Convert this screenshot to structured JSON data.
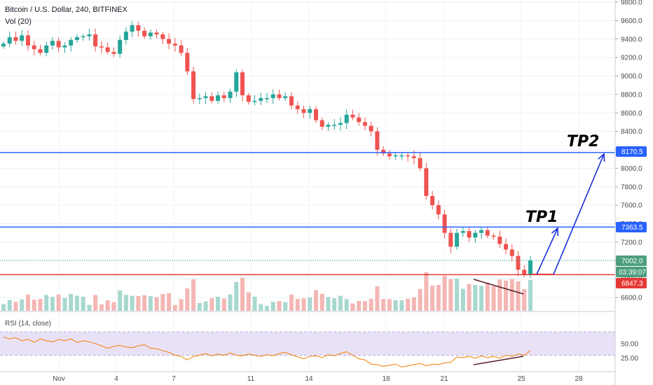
{
  "header": {
    "title": "Bitcoin / U.S. Dollar, 240, BITFINEX",
    "volume_label": "Vol (20)"
  },
  "rsi": {
    "label": "RSI (14, close)",
    "ticks": [
      "50.00",
      "25.00"
    ],
    "band_upper": 70,
    "band_lower": 30
  },
  "annotations": {
    "tp1": "TP1",
    "tp2": "TP2"
  },
  "price_tags": {
    "tp2": "8170.5",
    "tp1": "7363.5",
    "last": "7002.0",
    "countdown": "03:39:07",
    "support": "6847.3"
  },
  "colors": {
    "up": "#26a69a",
    "down": "#ef5350",
    "up_vol": "#a7d8cf",
    "down_vol": "#f4b6b4",
    "target_line": "#2962ff",
    "support_line": "#e53935",
    "arrow": "#1a2fd8",
    "divergence": "#5d1f2b",
    "rsi_line": "#f57c00",
    "rsi_band": "#e9e2f7",
    "last_price": "#26a69a"
  },
  "chart_data": {
    "type": "candlestick",
    "title": "Bitcoin / U.S. Dollar, 240, BITFINEX",
    "y_ticks": [
      "9800.0",
      "9600.0",
      "9400.0",
      "9200.0",
      "9000.0",
      "8800.0",
      "8600.0",
      "8400.0",
      "8200.0",
      "8000.0",
      "7800.0",
      "7600.0",
      "7400.0",
      "7200.0",
      "7000.0",
      "6800.0",
      "6600.0"
    ],
    "x_ticks": [
      "Nov",
      "4",
      "7",
      "11",
      "14",
      "18",
      "21",
      "25",
      "28"
    ],
    "ylim": [
      6450,
      9850
    ],
    "levels": [
      {
        "name": "TP2",
        "price": 8170.5
      },
      {
        "name": "TP1",
        "price": 7363.5
      },
      {
        "name": "support",
        "price": 6847.3
      }
    ],
    "last_price": 7002.0,
    "closes": [
      9350,
      9420,
      9380,
      9440,
      9330,
      9290,
      9250,
      9330,
      9380,
      9310,
      9330,
      9390,
      9420,
      9430,
      9450,
      9320,
      9310,
      9260,
      9240,
      9390,
      9480,
      9550,
      9490,
      9430,
      9470,
      9450,
      9400,
      9350,
      9330,
      9250,
      9050,
      8750,
      8760,
      8780,
      8730,
      8790,
      8760,
      8830,
      9040,
      8790,
      8720,
      8730,
      8760,
      8760,
      8800,
      8760,
      8780,
      8680,
      8640,
      8600,
      8640,
      8520,
      8450,
      8470,
      8470,
      8490,
      8580,
      8550,
      8500,
      8460,
      8400,
      8200,
      8160,
      8130,
      8140,
      8140,
      8130,
      8110,
      8000,
      7700,
      7600,
      7500,
      7300,
      7150,
      7300,
      7320,
      7250,
      7300,
      7330,
      7270,
      7260,
      7180,
      7120,
      7050,
      6900,
      6850,
      7000
    ],
    "rsi_values": [
      61,
      58,
      60,
      55,
      57,
      52,
      58,
      55,
      53,
      57,
      55,
      58,
      52,
      55,
      53,
      50,
      46,
      42,
      45,
      47,
      44,
      43,
      46,
      48,
      42,
      41,
      38,
      35,
      30,
      28,
      22,
      28,
      30,
      33,
      29,
      32,
      30,
      34,
      30,
      29,
      32,
      30,
      28,
      31,
      29,
      33,
      35,
      31,
      27,
      24,
      28,
      29,
      26,
      31,
      29,
      33,
      36,
      30,
      24,
      22,
      15,
      14,
      11,
      13,
      15,
      10,
      12,
      14,
      16,
      12,
      15,
      14,
      17,
      18,
      27,
      26,
      28,
      25,
      29,
      26,
      28,
      25,
      30,
      28,
      32,
      30,
      38
    ]
  }
}
